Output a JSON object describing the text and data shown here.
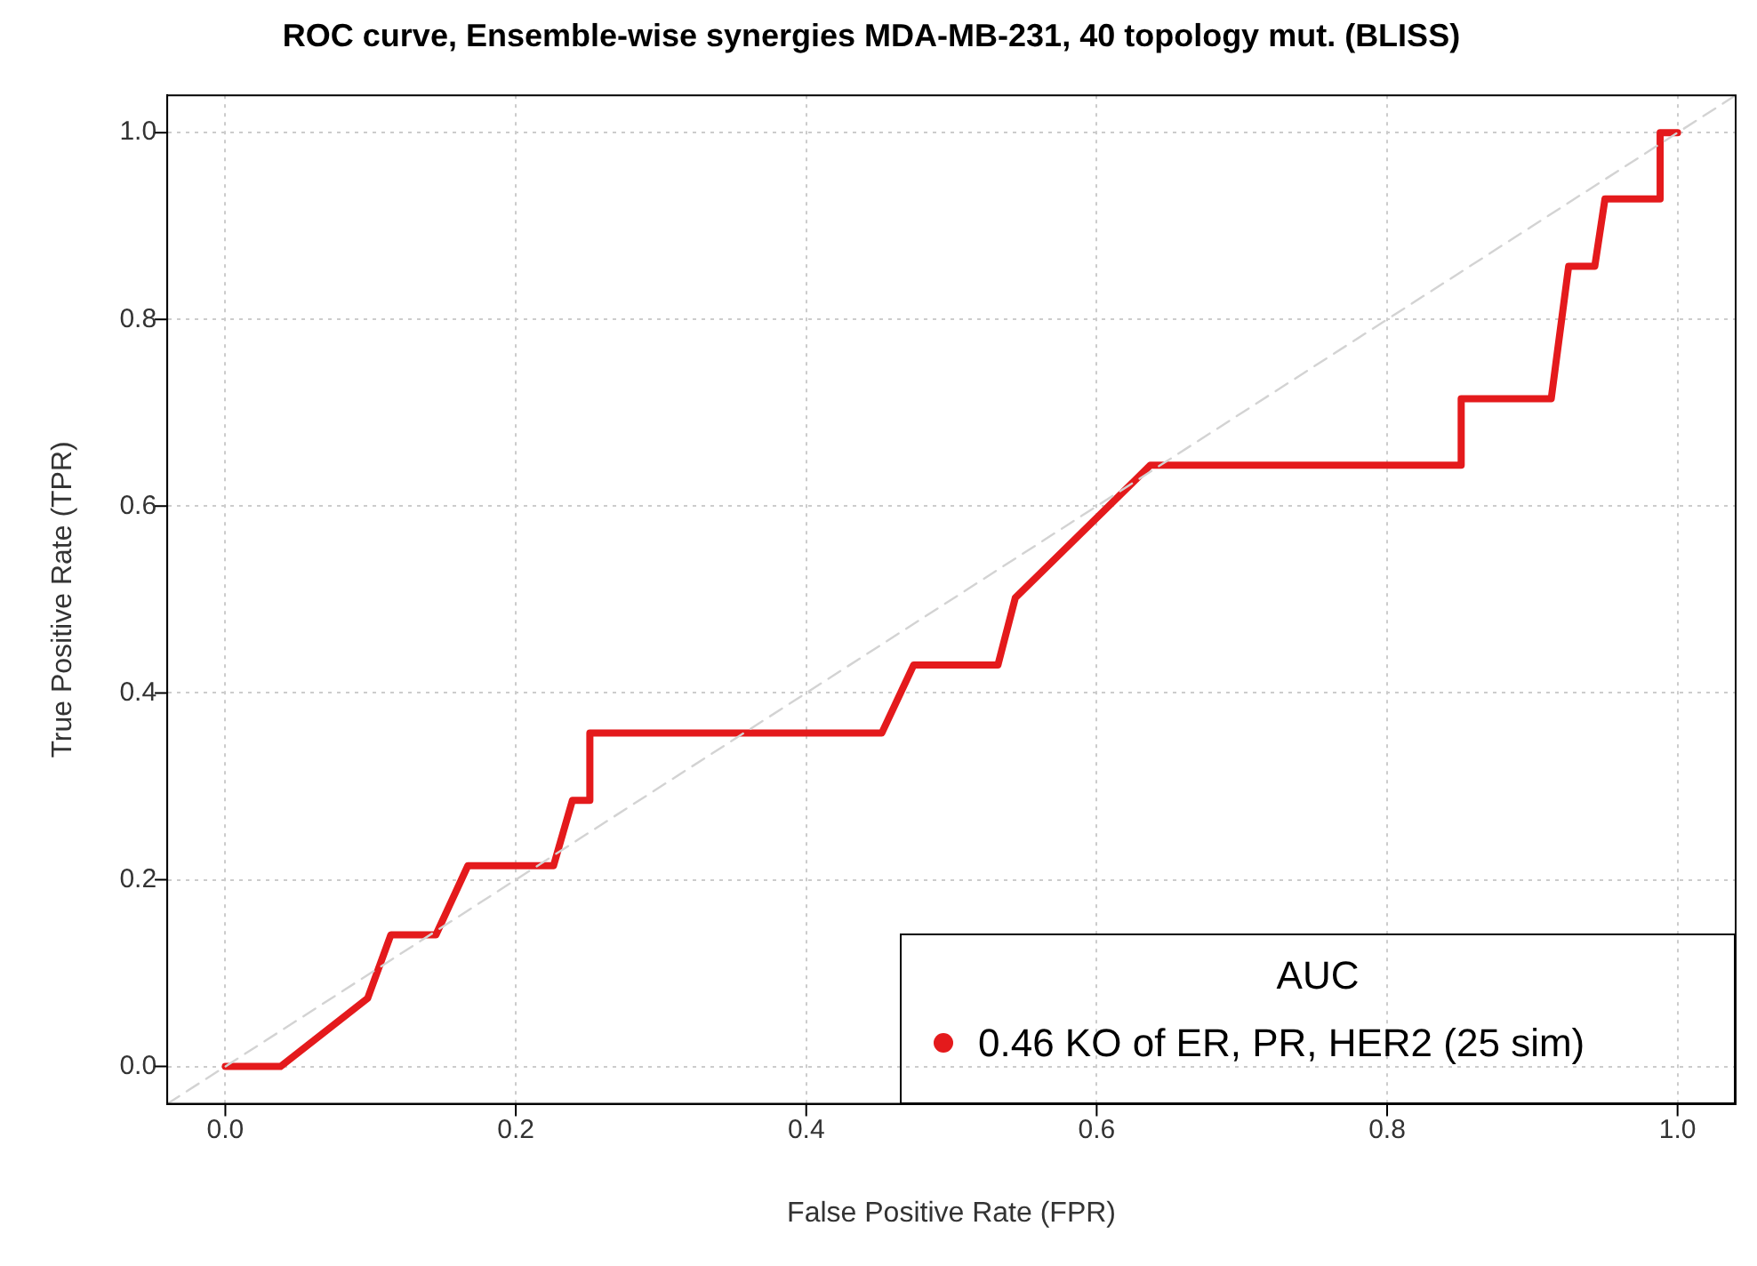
{
  "chart_data": {
    "type": "line",
    "title": "ROC curve, Ensemble-wise synergies MDA-MB-231, 40 topology mut. (BLISS)",
    "xlabel": "False Positive Rate (FPR)",
    "ylabel": "True Positive Rate (TPR)",
    "legend_title": "AUC",
    "legend": "bottom right",
    "grid": true,
    "marker": "none",
    "xlim": [
      -0.04,
      1.04
    ],
    "ylim": [
      -0.04,
      1.04
    ],
    "xticks": [
      {
        "value": 0,
        "label": "0.0"
      },
      {
        "value": 0.2,
        "label": "0.2"
      },
      {
        "value": 0.4,
        "label": "0.4"
      },
      {
        "value": 0.6,
        "label": "0.6"
      },
      {
        "value": 0.8,
        "label": "0.8"
      },
      {
        "value": 1,
        "label": "1.0"
      }
    ],
    "yticks": [
      {
        "value": 0,
        "label": "0.0"
      },
      {
        "value": 0.2,
        "label": "0.2"
      },
      {
        "value": 0.4,
        "label": "0.4"
      },
      {
        "value": 0.6,
        "label": "0.6"
      },
      {
        "value": 0.8,
        "label": "0.8"
      },
      {
        "value": 1,
        "label": "1.0"
      }
    ],
    "series": [
      {
        "color": "#d3d3d3",
        "line_style": "dashed",
        "x": [
          -0.04,
          1.04
        ],
        "values": [
          -0.04,
          1.04
        ]
      },
      {
        "name": "0.46 KO of ER, PR, HER2 (25 sim)",
        "color": "#e41a1c",
        "line_style": "solid",
        "x": [
          0,
          0.038,
          0.098,
          0.114,
          0.145,
          0.167,
          0.226,
          0.239,
          0.251,
          0.251,
          0.452,
          0.474,
          0.532,
          0.544,
          0.637,
          0.851,
          0.851,
          0.913,
          0.925,
          0.943,
          0.95,
          0.988,
          0.988,
          1
        ],
        "values": [
          0,
          0,
          0.073,
          0.141,
          0.141,
          0.215,
          0.215,
          0.285,
          0.285,
          0.357,
          0.357,
          0.43,
          0.43,
          0.502,
          0.644,
          0.644,
          0.715,
          0.715,
          0.857,
          0.857,
          0.929,
          0.929,
          1,
          1
        ]
      }
    ]
  }
}
